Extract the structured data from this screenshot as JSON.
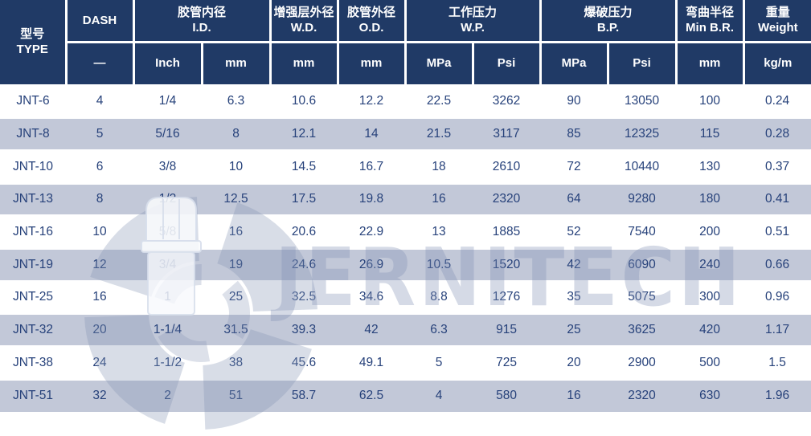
{
  "table": {
    "columns": {
      "type": {
        "zh": "型号",
        "en": "TYPE"
      },
      "dash": {
        "label": "DASH",
        "unit": "—"
      },
      "id": {
        "zh": "胶管内径",
        "en": "I.D.",
        "unit_inch": "Inch",
        "unit_mm": "mm"
      },
      "wd": {
        "zh": "增强层外径",
        "en": "W.D.",
        "unit": "mm"
      },
      "od": {
        "zh": "胶管外径",
        "en": "O.D.",
        "unit": "mm"
      },
      "wp": {
        "zh": "工作压力",
        "en": "W.P.",
        "unit_mpa": "MPa",
        "unit_psi": "Psi"
      },
      "bp": {
        "zh": "爆破压力",
        "en": "B.P.",
        "unit_mpa": "MPa",
        "unit_psi": "Psi"
      },
      "br": {
        "zh": "弯曲半径",
        "en": "Min B.R.",
        "unit": "mm"
      },
      "weight": {
        "zh": "重量",
        "en": "Weight",
        "unit": "kg/m"
      }
    },
    "rows": [
      [
        "JNT-6",
        "4",
        "1/4",
        "6.3",
        "10.6",
        "12.2",
        "22.5",
        "3262",
        "90",
        "13050",
        "100",
        "0.24"
      ],
      [
        "JNT-8",
        "5",
        "5/16",
        "8",
        "12.1",
        "14",
        "21.5",
        "3117",
        "85",
        "12325",
        "115",
        "0.28"
      ],
      [
        "JNT-10",
        "6",
        "3/8",
        "10",
        "14.5",
        "16.7",
        "18",
        "2610",
        "72",
        "10440",
        "130",
        "0.37"
      ],
      [
        "JNT-13",
        "8",
        "1/2",
        "12.5",
        "17.5",
        "19.8",
        "16",
        "2320",
        "64",
        "9280",
        "180",
        "0.41"
      ],
      [
        "JNT-16",
        "10",
        "5/8",
        "16",
        "20.6",
        "22.9",
        "13",
        "1885",
        "52",
        "7540",
        "200",
        "0.51"
      ],
      [
        "JNT-19",
        "12",
        "3/4",
        "19",
        "24.6",
        "26.9",
        "10.5",
        "1520",
        "42",
        "6090",
        "240",
        "0.66"
      ],
      [
        "JNT-25",
        "16",
        "1",
        "25",
        "32.5",
        "34.6",
        "8.8",
        "1276",
        "35",
        "5075",
        "300",
        "0.96"
      ],
      [
        "JNT-32",
        "20",
        "1-1/4",
        "31.5",
        "39.3",
        "42",
        "6.3",
        "915",
        "25",
        "3625",
        "420",
        "1.17"
      ],
      [
        "JNT-38",
        "24",
        "1-1/2",
        "38",
        "45.6",
        "49.1",
        "5",
        "725",
        "20",
        "2900",
        "500",
        "1.5"
      ],
      [
        "JNT-51",
        "32",
        "2",
        "51",
        "58.7",
        "62.5",
        "4",
        "580",
        "16",
        "2320",
        "630",
        "1.96"
      ]
    ]
  },
  "watermark": {
    "text": "JERNITECH"
  },
  "colors": {
    "header_bg": "#203a66",
    "header_text": "#ffffff",
    "row_stripe": "#c2c8d8",
    "cell_text": "#26417a",
    "watermark": "#8190b2"
  }
}
